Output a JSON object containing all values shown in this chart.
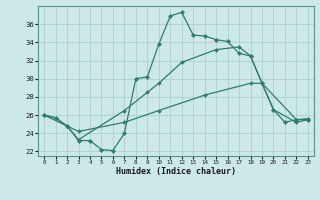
{
  "line1_x": [
    0,
    1,
    2,
    3,
    4,
    5,
    6,
    7,
    8,
    9,
    10,
    11,
    12,
    13,
    14,
    15,
    16,
    17,
    18,
    19,
    20,
    21,
    22,
    23
  ],
  "line1_y": [
    26.0,
    25.7,
    24.8,
    23.2,
    23.2,
    22.2,
    22.1,
    24.0,
    30.0,
    30.2,
    33.8,
    36.9,
    37.3,
    34.8,
    34.7,
    34.3,
    34.1,
    32.8,
    32.5,
    29.5,
    26.6,
    25.2,
    25.5,
    25.6
  ],
  "line2_x": [
    0,
    1,
    2,
    3,
    7,
    9,
    10,
    12,
    15,
    17,
    18,
    19,
    20,
    22,
    23
  ],
  "line2_y": [
    26.0,
    25.7,
    24.8,
    23.3,
    26.5,
    28.5,
    29.5,
    31.8,
    33.2,
    33.5,
    32.5,
    29.5,
    26.6,
    25.2,
    25.5
  ],
  "line3_x": [
    0,
    3,
    7,
    10,
    14,
    18,
    19,
    22,
    23
  ],
  "line3_y": [
    26.0,
    24.2,
    25.2,
    26.5,
    28.2,
    29.5,
    29.5,
    25.5,
    25.5
  ],
  "color": "#2e7d6e",
  "bg_color": "#cde8e8",
  "grid_color": "#aed0d0",
  "xlabel": "Humidex (Indice chaleur)",
  "xlim": [
    -0.5,
    23.5
  ],
  "ylim": [
    21.5,
    38.0
  ],
  "yticks": [
    22,
    24,
    26,
    28,
    30,
    32,
    34,
    36
  ],
  "xticks": [
    0,
    1,
    2,
    3,
    4,
    5,
    6,
    7,
    8,
    9,
    10,
    11,
    12,
    13,
    14,
    15,
    16,
    17,
    18,
    19,
    20,
    21,
    22,
    23
  ]
}
